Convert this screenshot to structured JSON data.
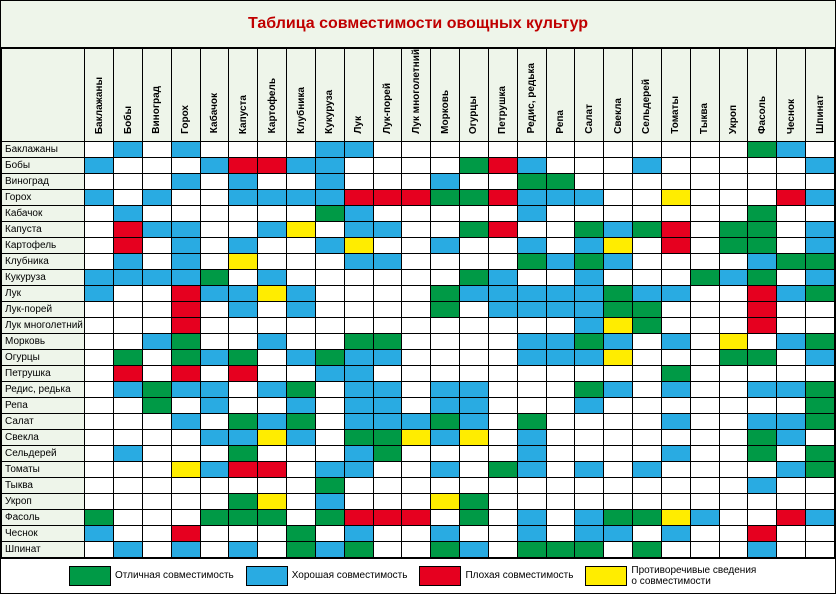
{
  "title": "Таблица совместимости овощных культур",
  "title_color": "#c00000",
  "header_bg": "#eef5ea",
  "colors": {
    "E": "#009a46",
    "G": "#29abe2",
    "B": "#e6001f",
    "C": "#ffed00",
    "N": "#ffffff"
  },
  "crops": [
    "Баклажаны",
    "Бобы",
    "Виноград",
    "Горох",
    "Кабачок",
    "Капуста",
    "Картофель",
    "Клубника",
    "Кукуруза",
    "Лук",
    "Лук-порей",
    "Лук многолетний",
    "Морковь",
    "Огурцы",
    "Петрушка",
    "Редис, редька",
    "Репа",
    "Салат",
    "Свекла",
    "Сельдерей",
    "Томаты",
    "Тыква",
    "Укроп",
    "Фасоль",
    "Чеснок",
    "Шпинат"
  ],
  "matrix": [
    "NGNGNNNNGGNNNNNNNNNNNNNEGN",
    "GNNNGBBGGNNNNEBGNNNGNNNNNG",
    "NNNGNGNNGNNNGNNEENNNNNNNNN",
    "GNGNNGGGGBBBEEBGGGNNCNNNBG",
    "NGNNNNNNEGNNNNNGNNNNNNNENN",
    "NBGGNNGCNGGNNEBNNEGEBNEENG",
    "NBNGNGNNGCNNGNNGNGCNBNEENG",
    "NGNGNCNNNGGNNNNEGEGNNNNGEE",
    "GGGGENGNNNNNNEGNNGNNNEGENG",
    "GNNBGGCGNNNNEGGGGGEGGNNBGE",
    "NNNBNGNGNNNNENGGGGEENNNBNN",
    "NNNBNNNNNNNNNNNNNGCENNNBNN",
    "NNGENNGNNEENNNNGGEGNGNCNGE",
    "NENEGENGEGGNNNNGGGCNNNEENG",
    "NBNBNBNNGGNNNNNNNNNNENNNNN",
    "NGEGGNGENGGNGGNNNEGNGNNGGE",
    "NNENGNNGNGGNGGNNNGNNNNNNNE",
    "NNNGNEGENGGGEGNENNNNGNNGGE",
    "NNNNGGCGNEECGCNGNNNNNNNEGN",
    "NGNNNENNNGENNNNGNNNNGNNENE",
    "NNNCGBBNGGNNGNEGNGNGNNNNGE",
    "NNNNNNNNENNNNNNNNNNNNNNGNN",
    "NNNNNECNGNNNCENNNNNNNNNNNN",
    "ENNNEEENEBBBNENGNGEECGNNBG",
    "GNNBNNNENGNNGNNGNGGNGNNBNN",
    "NGNGNGNEGENNEGNEEENENNNGNN"
  ],
  "legend": [
    {
      "color_key": "E",
      "text": "Отличная совместимость"
    },
    {
      "color_key": "G",
      "text": "Хорошая совместимость"
    },
    {
      "color_key": "B",
      "text": "Плохая совместимость"
    },
    {
      "color_key": "C",
      "text": "Противоречивые сведения о совместимости"
    }
  ]
}
